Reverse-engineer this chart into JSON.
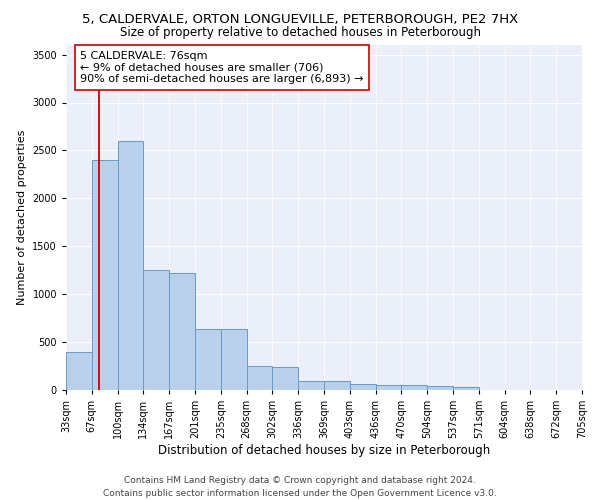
{
  "title": "5, CALDERVALE, ORTON LONGUEVILLE, PETERBOROUGH, PE2 7HX",
  "subtitle": "Size of property relative to detached houses in Peterborough",
  "xlabel": "Distribution of detached houses by size in Peterborough",
  "ylabel": "Number of detached properties",
  "bar_values": [
    400,
    2400,
    2600,
    1250,
    1220,
    640,
    635,
    250,
    245,
    95,
    95,
    58,
    55,
    48,
    45,
    28,
    0,
    0,
    0,
    0
  ],
  "bin_labels": [
    "33sqm",
    "67sqm",
    "100sqm",
    "134sqm",
    "167sqm",
    "201sqm",
    "235sqm",
    "268sqm",
    "302sqm",
    "336sqm",
    "369sqm",
    "403sqm",
    "436sqm",
    "470sqm",
    "504sqm",
    "537sqm",
    "571sqm",
    "604sqm",
    "638sqm",
    "672sqm",
    "705sqm"
  ],
  "bar_color": "#b8d0ea",
  "bar_edge_color": "#6699cc",
  "bar_edge_width": 0.7,
  "vline_x": 1.27,
  "vline_color": "#cc0000",
  "vline_linewidth": 1.3,
  "annotation_text": "5 CALDERVALE: 76sqm\n← 9% of detached houses are smaller (706)\n90% of semi-detached houses are larger (6,893) →",
  "annotation_box_color": "#ffffff",
  "annotation_box_edge": "#cc0000",
  "annotation_fontsize": 8,
  "ylim": [
    0,
    3600
  ],
  "yticks": [
    0,
    500,
    1000,
    1500,
    2000,
    2500,
    3000,
    3500
  ],
  "background_color": "#eaeffa",
  "grid_color": "#ffffff",
  "footer": "Contains HM Land Registry data © Crown copyright and database right 2024.\nContains public sector information licensed under the Open Government Licence v3.0.",
  "title_fontsize": 9.5,
  "subtitle_fontsize": 8.5,
  "xlabel_fontsize": 8.5,
  "ylabel_fontsize": 8,
  "tick_fontsize": 7,
  "footer_fontsize": 6.5
}
